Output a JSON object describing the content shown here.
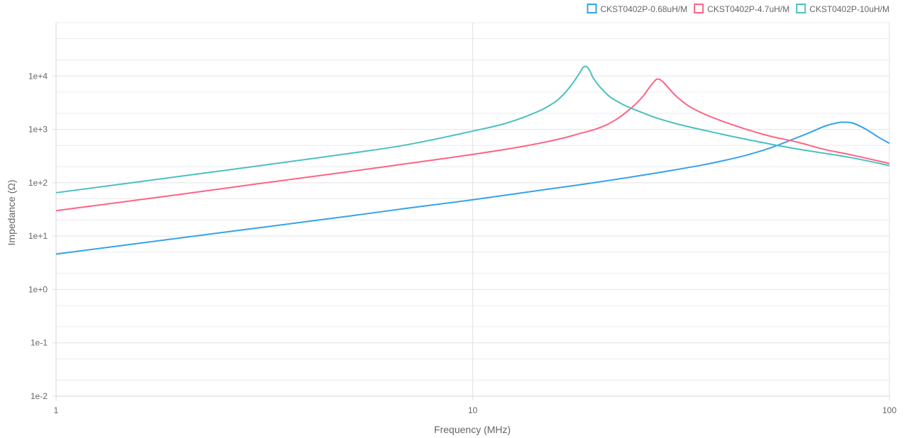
{
  "chart_data": {
    "type": "line",
    "xlabel": "Frequency (MHz)",
    "ylabel": "Impedance (Ω)",
    "x_scale": "log",
    "y_scale": "log",
    "xlim": [
      1,
      100
    ],
    "ylim": [
      0.01,
      100000
    ],
    "x_ticks": [
      {
        "value": 1,
        "label": "1"
      },
      {
        "value": 10,
        "label": "10"
      },
      {
        "value": 100,
        "label": "100"
      }
    ],
    "y_ticks": [
      {
        "value": 0.01,
        "label": "1e-2"
      },
      {
        "value": 0.1,
        "label": "1e-1"
      },
      {
        "value": 1,
        "label": "1e+0"
      },
      {
        "value": 10,
        "label": "1e+1"
      },
      {
        "value": 100,
        "label": "1e+2"
      },
      {
        "value": 1000,
        "label": "1e+3"
      },
      {
        "value": 10000,
        "label": "1e+4"
      }
    ],
    "grid": true,
    "legend_position": "top-right",
    "series": [
      {
        "name": "CKST0402P-0.68uH/M",
        "color": "#36A2EB",
        "points": [
          [
            1,
            4.6
          ],
          [
            2,
            9.3
          ],
          [
            3,
            14.0
          ],
          [
            5,
            23.5
          ],
          [
            7,
            33.5
          ],
          [
            10,
            48
          ],
          [
            15,
            75
          ],
          [
            20,
            103
          ],
          [
            30,
            170
          ],
          [
            40,
            260
          ],
          [
            50,
            410
          ],
          [
            60,
            700
          ],
          [
            65,
            900
          ],
          [
            70,
            1150
          ],
          [
            75,
            1330
          ],
          [
            78,
            1360
          ],
          [
            82,
            1300
          ],
          [
            88,
            1000
          ],
          [
            94,
            720
          ],
          [
            100,
            550
          ]
        ]
      },
      {
        "name": "CKST0402P-4.7uH/M",
        "color": "#FF6384",
        "points": [
          [
            1,
            30
          ],
          [
            2,
            61
          ],
          [
            3,
            94
          ],
          [
            5,
            160
          ],
          [
            7,
            230
          ],
          [
            10,
            340
          ],
          [
            13,
            470
          ],
          [
            16,
            650
          ],
          [
            18,
            830
          ],
          [
            20,
            1050
          ],
          [
            22,
            1500
          ],
          [
            24,
            2500
          ],
          [
            25.5,
            4000
          ],
          [
            26.5,
            6000
          ],
          [
            27.3,
            8000
          ],
          [
            27.8,
            8800
          ],
          [
            28.5,
            8000
          ],
          [
            29.5,
            6000
          ],
          [
            31,
            4000
          ],
          [
            34,
            2400
          ],
          [
            40,
            1400
          ],
          [
            50,
            800
          ],
          [
            60,
            580
          ],
          [
            70,
            420
          ],
          [
            80,
            340
          ],
          [
            100,
            230
          ]
        ]
      },
      {
        "name": "CKST0402P-10uH/M",
        "color": "#4BC0C0",
        "points": [
          [
            1,
            65
          ],
          [
            2,
            133
          ],
          [
            3,
            203
          ],
          [
            5,
            350
          ],
          [
            7,
            520
          ],
          [
            10,
            930
          ],
          [
            12,
            1300
          ],
          [
            14,
            2000
          ],
          [
            15.5,
            3000
          ],
          [
            16.5,
            4500
          ],
          [
            17.3,
            7000
          ],
          [
            18,
            11000
          ],
          [
            18.5,
            15000
          ],
          [
            19,
            13500
          ],
          [
            19.5,
            9000
          ],
          [
            20.5,
            5500
          ],
          [
            22,
            3500
          ],
          [
            25,
            2200
          ],
          [
            30,
            1350
          ],
          [
            40,
            800
          ],
          [
            50,
            560
          ],
          [
            60,
            430
          ],
          [
            80,
            300
          ],
          [
            100,
            210
          ]
        ]
      }
    ]
  }
}
